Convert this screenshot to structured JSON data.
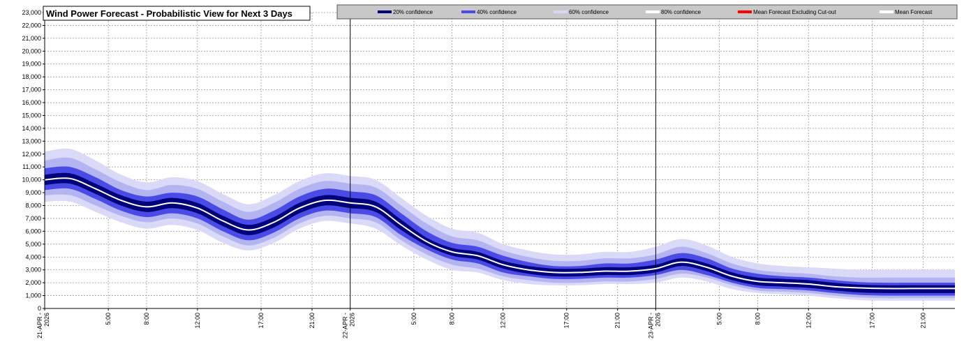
{
  "title": "Wind Power Forecast - Probabilistic View for Next 3 Days",
  "legend": [
    {
      "label": "20% confidence",
      "color": "#00007a"
    },
    {
      "label": "40% confidence",
      "color": "#4a4ae6"
    },
    {
      "label": "60% confidence",
      "color": "#c4c4f4"
    },
    {
      "label": "80% confidence",
      "color": "#ffffff"
    },
    {
      "label": "Mean Forecast Excluding Cut-out",
      "color": "#ff0000"
    },
    {
      "label": "Mean Forecast",
      "color": "#ffffff"
    }
  ],
  "colors": {
    "band20": "#00007a",
    "band40": "#4a4ae6",
    "band60": "#b4b4f2",
    "band80": "#dadaf8",
    "mean": "#ffffff",
    "legend_bg": "#c8c8c8",
    "grid": "#9a9a9a"
  },
  "chart_data": {
    "type": "area",
    "title": "Wind Power Forecast - Probabilistic View for Next 3 Days",
    "xlabel": "",
    "ylabel": "",
    "ylim": [
      0,
      23000
    ],
    "xlim_hours": [
      0,
      71.5
    ],
    "grid": true,
    "legend_placement": "top",
    "y_ticks": [
      "0",
      "1,000",
      "2,000",
      "3,000",
      "4,000",
      "5,000",
      "6,000",
      "7,000",
      "8,000",
      "9,000",
      "10,000",
      "11,000",
      "12,000",
      "13,000",
      "14,000",
      "15,000",
      "16,000",
      "17,000",
      "18,000",
      "19,000",
      "20,000",
      "21,000",
      "22,000",
      "23,000"
    ],
    "x_ticks": [
      {
        "hour": 0,
        "label": "21-APR-2026",
        "day_boundary": true
      },
      {
        "hour": 5,
        "label": "5:00"
      },
      {
        "hour": 8,
        "label": "8:00"
      },
      {
        "hour": 12,
        "label": "12:00"
      },
      {
        "hour": 17,
        "label": "17:00"
      },
      {
        "hour": 21,
        "label": "21:00"
      },
      {
        "hour": 24,
        "label": "22-APR-2026",
        "day_boundary": true
      },
      {
        "hour": 29,
        "label": "5:00"
      },
      {
        "hour": 32,
        "label": "8:00"
      },
      {
        "hour": 36,
        "label": "12:00"
      },
      {
        "hour": 41,
        "label": "17:00"
      },
      {
        "hour": 45,
        "label": "21:00"
      },
      {
        "hour": 48,
        "label": "23-APR-2026",
        "day_boundary": true
      },
      {
        "hour": 53,
        "label": "5:00"
      },
      {
        "hour": 56,
        "label": "8:00"
      },
      {
        "hour": 60,
        "label": "12:00"
      },
      {
        "hour": 65,
        "label": "17:00"
      },
      {
        "hour": 69,
        "label": "21:00"
      }
    ],
    "x_hours": [
      0,
      2,
      4,
      6,
      8,
      10,
      12,
      14,
      16,
      18,
      20,
      22,
      24,
      26,
      28,
      30,
      32,
      34,
      36,
      38,
      40,
      42,
      44,
      46,
      48,
      50,
      52,
      54,
      56,
      58,
      60,
      62,
      64,
      66,
      68,
      70,
      71.5
    ],
    "mean": [
      10000,
      10100,
      9300,
      8400,
      7900,
      8200,
      7800,
      6800,
      6100,
      6700,
      7800,
      8400,
      8200,
      7900,
      6500,
      5200,
      4400,
      4100,
      3400,
      3000,
      2800,
      2800,
      2900,
      2900,
      3100,
      3600,
      3200,
      2500,
      2100,
      2000,
      1900,
      1700,
      1600,
      1550,
      1550,
      1550,
      1550
    ],
    "series": [
      {
        "name": "20% confidence",
        "lower": [
          9600,
          9700,
          8900,
          8000,
          7500,
          7800,
          7400,
          6400,
          5700,
          6300,
          7400,
          8000,
          7800,
          7500,
          6100,
          4900,
          4100,
          3800,
          3100,
          2700,
          2500,
          2500,
          2600,
          2600,
          2800,
          3300,
          2900,
          2200,
          1800,
          1700,
          1600,
          1400,
          1250,
          1200,
          1200,
          1200,
          1200
        ],
        "upper": [
          10400,
          10500,
          9700,
          8800,
          8300,
          8600,
          8200,
          7200,
          6500,
          7100,
          8200,
          8800,
          8600,
          8300,
          6900,
          5500,
          4700,
          4400,
          3700,
          3300,
          3100,
          3100,
          3200,
          3200,
          3400,
          3900,
          3500,
          2800,
          2400,
          2300,
          2200,
          2000,
          1850,
          1800,
          1800,
          1800,
          1800
        ]
      },
      {
        "name": "40% confidence",
        "lower": [
          9200,
          9300,
          8500,
          7600,
          7100,
          7400,
          7000,
          6000,
          5300,
          5900,
          7000,
          7600,
          7400,
          7100,
          5700,
          4600,
          3800,
          3500,
          2800,
          2500,
          2300,
          2300,
          2400,
          2400,
          2600,
          3000,
          2600,
          2000,
          1600,
          1500,
          1400,
          1200,
          1050,
          1000,
          1000,
          1000,
          1000
        ],
        "upper": [
          10900,
          11000,
          10200,
          9200,
          8700,
          9000,
          8700,
          7700,
          6900,
          7600,
          8700,
          9300,
          9100,
          8800,
          7400,
          6000,
          5100,
          4800,
          4100,
          3600,
          3300,
          3300,
          3500,
          3500,
          3800,
          4300,
          3900,
          3100,
          2700,
          2500,
          2400,
          2200,
          2050,
          2000,
          2000,
          2000,
          2000
        ]
      },
      {
        "name": "60% confidence",
        "lower": [
          8800,
          8800,
          8000,
          7200,
          6700,
          7000,
          6600,
          5600,
          4900,
          5500,
          6600,
          7200,
          7000,
          6700,
          5300,
          4200,
          3400,
          3100,
          2500,
          2200,
          2000,
          2000,
          2100,
          2100,
          2300,
          2700,
          2400,
          1800,
          1400,
          1300,
          1200,
          1000,
          850,
          800,
          800,
          800,
          800
        ],
        "upper": [
          11500,
          11700,
          10800,
          9800,
          9200,
          9600,
          9300,
          8300,
          7500,
          8200,
          9300,
          9900,
          9700,
          9400,
          8000,
          6600,
          5600,
          5300,
          4500,
          4000,
          3700,
          3700,
          3900,
          3900,
          4200,
          4800,
          4300,
          3500,
          3000,
          2800,
          2700,
          2500,
          2400,
          2400,
          2400,
          2400,
          2400
        ]
      },
      {
        "name": "80% confidence",
        "lower": [
          8300,
          8300,
          7500,
          6700,
          6200,
          6500,
          6100,
          5100,
          4500,
          5100,
          6200,
          6800,
          6600,
          6200,
          4900,
          3800,
          3000,
          2800,
          2200,
          1900,
          1800,
          1800,
          1900,
          1900,
          2000,
          2400,
          2100,
          1500,
          1200,
          1100,
          1000,
          800,
          650,
          600,
          600,
          600,
          600
        ],
        "upper": [
          12200,
          12400,
          11500,
          10400,
          9800,
          10200,
          9900,
          8900,
          8100,
          8800,
          9900,
          10500,
          10300,
          10000,
          8600,
          7200,
          6200,
          5900,
          5000,
          4500,
          4200,
          4200,
          4400,
          4400,
          4800,
          5400,
          4900,
          4000,
          3500,
          3300,
          3200,
          3100,
          3000,
          3000,
          3000,
          3000,
          3000
        ]
      }
    ]
  }
}
